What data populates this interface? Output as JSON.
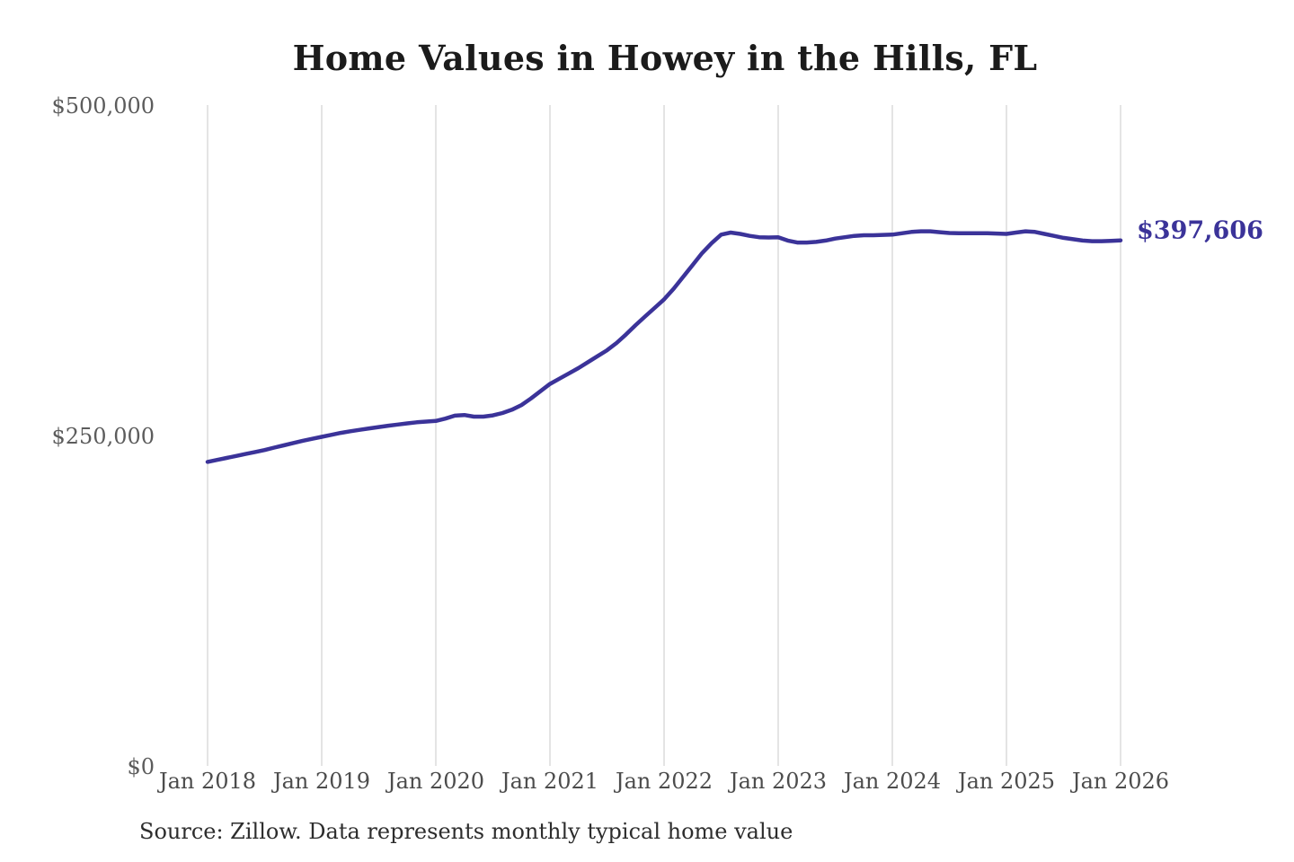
{
  "page": {
    "background_color": "#ffffff"
  },
  "chart": {
    "title": "Home Values in Howey in the Hills, FL",
    "end_label": "$397,606",
    "source_note": "Source: Zillow. Data represents monthly typical home value",
    "line_color": "#3b3399",
    "grid_color": "#c9c9c9",
    "title_color": "#1b1b1b"
  },
  "chart_data": {
    "type": "line",
    "title": "Home Values in Howey in the Hills, FL",
    "xlabel": "",
    "ylabel": "",
    "ylim": [
      0,
      500000
    ],
    "grid": "vertical-only",
    "legend": "none",
    "frequency": "monthly",
    "x_start": "Jan 2018",
    "x_end": "Jan 2026",
    "x_tick_labels": [
      "Jan 2018",
      "Jan 2019",
      "Jan 2020",
      "Jan 2021",
      "Jan 2022",
      "Jan 2023",
      "Jan 2024",
      "Jan 2025",
      "Jan 2026"
    ],
    "y_ticks": [
      {
        "label": "$0",
        "value": 0
      },
      {
        "label": "$250,000",
        "value": 250000
      },
      {
        "label": "$500,000",
        "value": 500000
      }
    ],
    "end_value": 397606,
    "end_value_label": "$397,606",
    "series": [
      {
        "name": "home_value",
        "values": [
          230000,
          231500,
          233000,
          234500,
          236000,
          237500,
          239000,
          240800,
          242500,
          244300,
          246000,
          247500,
          249000,
          250500,
          252000,
          253200,
          254300,
          255400,
          256400,
          257400,
          258300,
          259200,
          260000,
          260500,
          261000,
          262800,
          265000,
          265500,
          264300,
          264300,
          265200,
          267000,
          269500,
          273000,
          278000,
          283500,
          289000,
          293000,
          297000,
          301000,
          305500,
          310000,
          314500,
          320000,
          326500,
          333500,
          340000,
          346500,
          353000,
          361000,
          370000,
          379000,
          388000,
          395500,
          402000,
          403500,
          402500,
          401000,
          400000,
          399800,
          400000,
          397500,
          396000,
          396000,
          396500,
          397500,
          399000,
          400000,
          401000,
          401500,
          401500,
          401800,
          402000,
          403000,
          404000,
          404500,
          404500,
          403800,
          403200,
          403000,
          403000,
          403000,
          403000,
          402800,
          402500,
          403500,
          404500,
          404000,
          402500,
          401000,
          399500,
          398500,
          397500,
          397000,
          397000,
          397300,
          397606
        ]
      }
    ]
  }
}
